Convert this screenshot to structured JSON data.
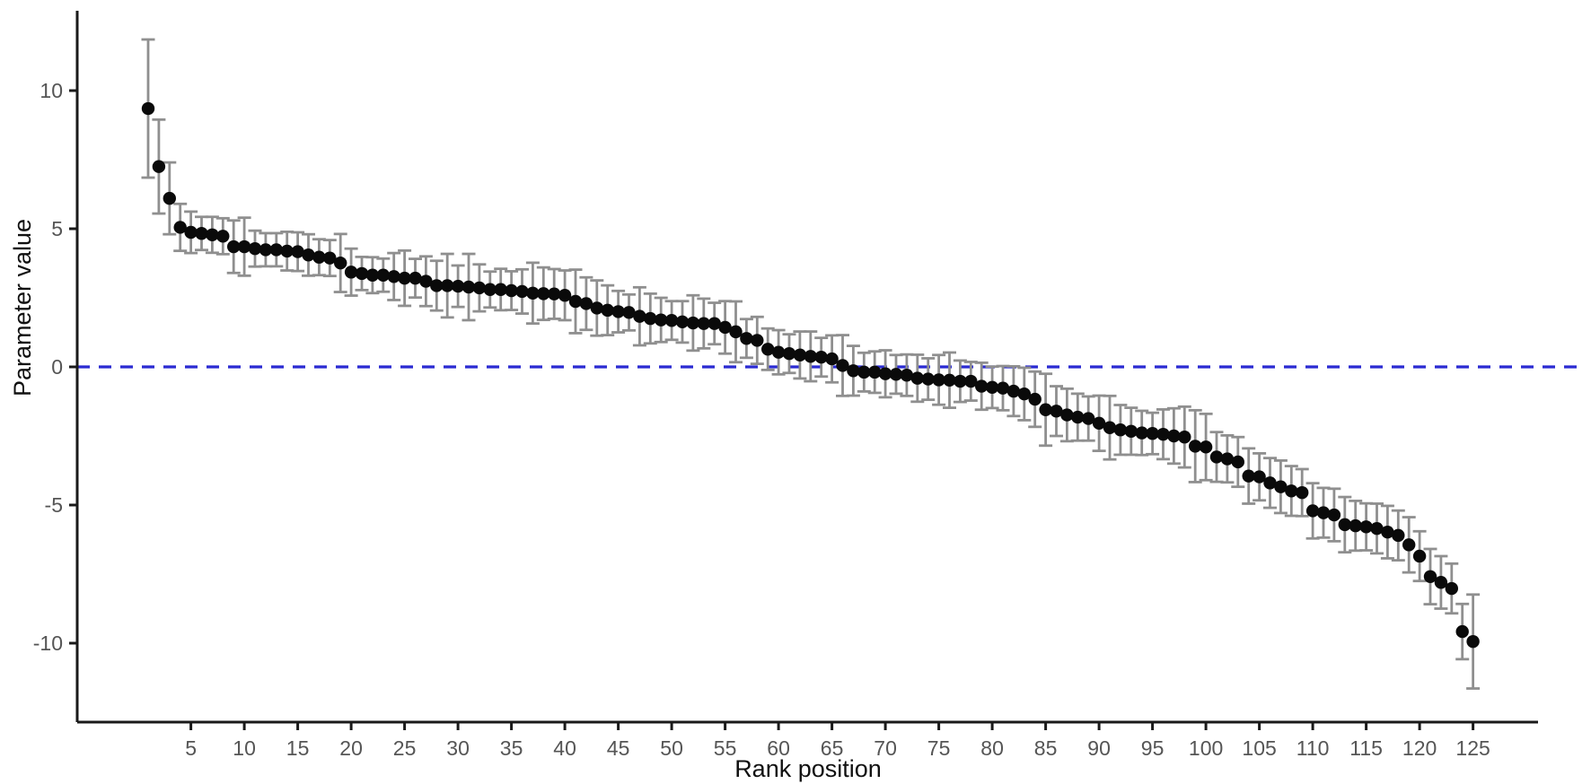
{
  "figure": {
    "background": "#ffffff",
    "type_note": "caterpillar plot of ranked parameter estimates with 95% interval error bars"
  },
  "chart_data": {
    "type": "scatter",
    "title": "",
    "xlabel": "Rank position",
    "ylabel": "Parameter value",
    "x_start_rank": 1,
    "n_points": 125,
    "x_ticks": [
      5,
      10,
      15,
      20,
      25,
      30,
      35,
      40,
      45,
      50,
      55,
      60,
      65,
      70,
      75,
      80,
      85,
      90,
      95,
      100,
      105,
      110,
      115,
      120,
      125
    ],
    "y_ticks": [
      -10,
      -5,
      0,
      5,
      10
    ],
    "y_tick_labels": [
      "-10",
      "-5",
      "0",
      "5",
      "10"
    ],
    "xlim": [
      0,
      130
    ],
    "ylim": [
      -12.9,
      12.95
    ],
    "grid": false,
    "legend": "none",
    "reference_line": {
      "y": 0,
      "style": "dashed",
      "color": "#2a2ad2"
    },
    "colors": {
      "point": "#0a0a0a",
      "error_bar": "#8f8f8f",
      "axis_line": "#1a1a1a",
      "tick_label": "#555555",
      "axis_title": "#111111"
    },
    "values": [
      9.35,
      7.25,
      6.1,
      5.05,
      4.87,
      4.83,
      4.78,
      4.73,
      4.35,
      4.35,
      4.28,
      4.24,
      4.24,
      4.19,
      4.17,
      4.05,
      3.97,
      3.94,
      3.76,
      3.43,
      3.38,
      3.32,
      3.32,
      3.27,
      3.21,
      3.21,
      3.1,
      2.94,
      2.94,
      2.92,
      2.89,
      2.86,
      2.8,
      2.8,
      2.76,
      2.73,
      2.67,
      2.65,
      2.64,
      2.59,
      2.37,
      2.29,
      2.13,
      2.05,
      2.0,
      1.97,
      1.83,
      1.75,
      1.7,
      1.68,
      1.63,
      1.59,
      1.57,
      1.57,
      1.43,
      1.27,
      1.03,
      0.96,
      0.64,
      0.53,
      0.48,
      0.43,
      0.38,
      0.35,
      0.29,
      0.05,
      -0.14,
      -0.19,
      -0.19,
      -0.25,
      -0.27,
      -0.3,
      -0.41,
      -0.44,
      -0.47,
      -0.48,
      -0.52,
      -0.52,
      -0.7,
      -0.74,
      -0.77,
      -0.88,
      -0.98,
      -1.17,
      -1.55,
      -1.6,
      -1.74,
      -1.82,
      -1.87,
      -2.04,
      -2.2,
      -2.28,
      -2.33,
      -2.39,
      -2.41,
      -2.44,
      -2.5,
      -2.54,
      -2.87,
      -2.9,
      -3.26,
      -3.33,
      -3.44,
      -3.95,
      -3.98,
      -4.2,
      -4.34,
      -4.49,
      -4.55,
      -5.21,
      -5.28,
      -5.36,
      -5.71,
      -5.75,
      -5.79,
      -5.85,
      -5.98,
      -6.1,
      -6.44,
      -6.85,
      -7.59,
      -7.8,
      -8.02,
      -9.58,
      -9.94
    ],
    "error_half_widths": [
      2.5,
      1.7,
      1.3,
      0.85,
      0.75,
      0.6,
      0.65,
      0.65,
      0.95,
      1.05,
      0.65,
      0.6,
      0.6,
      0.7,
      0.7,
      0.75,
      0.65,
      0.65,
      1.05,
      0.85,
      0.6,
      0.65,
      0.6,
      0.85,
      1.0,
      0.7,
      0.9,
      0.9,
      1.15,
      0.75,
      1.2,
      0.85,
      0.65,
      0.75,
      0.7,
      0.8,
      1.1,
      0.95,
      0.9,
      0.9,
      1.15,
      0.95,
      1.0,
      0.9,
      0.75,
      0.65,
      1.05,
      0.9,
      0.8,
      0.7,
      0.75,
      1.0,
      0.9,
      0.75,
      0.95,
      1.1,
      0.7,
      0.85,
      0.75,
      0.8,
      0.7,
      0.85,
      0.9,
      0.7,
      0.85,
      1.1,
      0.9,
      0.7,
      0.75,
      0.85,
      0.7,
      0.75,
      0.85,
      0.75,
      0.9,
      1.0,
      0.75,
      0.7,
      0.85,
      0.75,
      0.8,
      0.9,
      0.95,
      1.0,
      1.3,
      0.9,
      0.95,
      0.85,
      0.8,
      1.0,
      1.15,
      0.9,
      0.85,
      0.8,
      0.75,
      0.9,
      1.0,
      1.1,
      1.3,
      1.2,
      0.9,
      0.85,
      0.9,
      1.0,
      0.85,
      0.9,
      0.95,
      0.9,
      0.85,
      1.0,
      0.9,
      0.95,
      1.0,
      0.9,
      0.85,
      0.9,
      0.95,
      0.9,
      1.0,
      0.9,
      1.0,
      0.95,
      0.9,
      1.0,
      1.7
    ]
  }
}
